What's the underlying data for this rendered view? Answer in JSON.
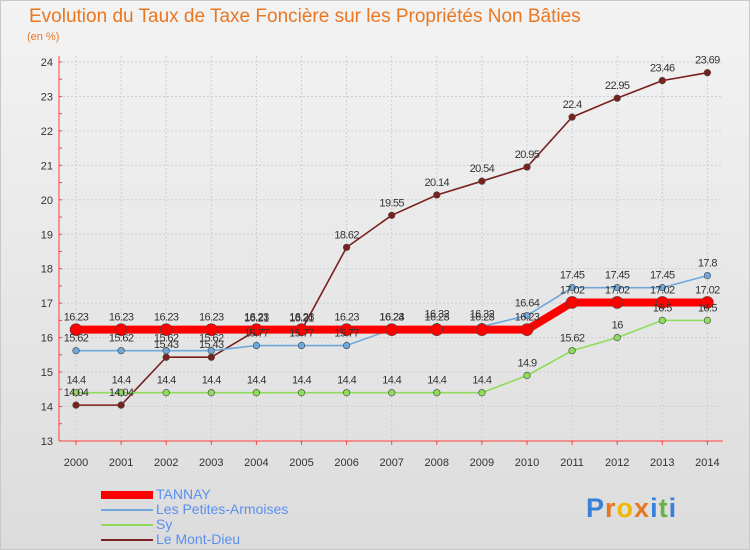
{
  "title": "Evolution du Taux de Taxe Foncière sur les Propriétés Non Bâties",
  "subtitle": "(en %)",
  "logo_text": "Proxiti",
  "logo_colors": [
    "#3a80d9",
    "#e87722",
    "#f2b705",
    "#e87722",
    "#3a80d9",
    "#6ab04c",
    "#3a80d9"
  ],
  "chart_data": {
    "type": "line",
    "title": "Evolution du Taux de Taxe Foncière sur les Propriétés Non Bâties",
    "ylabel": "(en %)",
    "xlabel": "",
    "ylim": [
      13,
      24
    ],
    "yticks": [
      "13",
      "14",
      "15",
      "16",
      "17",
      "18",
      "19",
      "20",
      "21",
      "22",
      "23",
      "24"
    ],
    "categories": [
      "2000",
      "2001",
      "2002",
      "2003",
      "2004",
      "2005",
      "2006",
      "2007",
      "2008",
      "2009",
      "2010",
      "2011",
      "2012",
      "2013",
      "2014"
    ],
    "legend_position": "bottom-left",
    "series": [
      {
        "name": "TANNAY",
        "color": "#ff0000",
        "values": [
          16.23,
          16.23,
          16.23,
          16.23,
          16.23,
          16.23,
          16.23,
          16.23,
          16.23,
          16.23,
          16.23,
          17.02,
          17.02,
          17.02,
          17.02
        ],
        "labels": [
          "16.23",
          "16.23",
          "16.23",
          "16.23",
          "16.23",
          "16.23",
          "16.23",
          "16.23",
          "16.23",
          "16.23",
          "16.23",
          "17.02",
          "17.02",
          "17.02",
          "17.02"
        ]
      },
      {
        "name": "Les Petites-Armoises",
        "color": "#6fa8dc",
        "values": [
          15.62,
          15.62,
          15.62,
          15.62,
          15.77,
          15.77,
          15.77,
          16.24,
          16.32,
          16.32,
          16.64,
          17.45,
          17.45,
          17.45,
          17.8
        ],
        "labels": [
          "15.62",
          "15.62",
          "15.62",
          "15.62",
          "15.77",
          "15.77",
          "15.77",
          "16.24",
          "16.32",
          "16.32",
          "16.64",
          "17.45",
          "17.45",
          "17.45",
          "17.8"
        ]
      },
      {
        "name": "Sy",
        "color": "#8fdc5a",
        "values": [
          14.4,
          14.4,
          14.4,
          14.4,
          14.4,
          14.4,
          14.4,
          14.4,
          14.4,
          14.4,
          14.9,
          15.62,
          16,
          16.5,
          16.5
        ],
        "labels": [
          "14.4",
          "14.4",
          "14.4",
          "14.4",
          "14.4",
          "14.4",
          "14.4",
          "14.4",
          "14.4",
          "14.4",
          "14.9",
          "15.62",
          "16",
          "16.5",
          "16.5"
        ]
      },
      {
        "name": "Le Mont-Dieu",
        "color": "#7b1f1f",
        "values": [
          14.04,
          14.04,
          15.43,
          15.43,
          16.21,
          16.21,
          18.62,
          19.55,
          20.14,
          20.54,
          20.95,
          22.4,
          22.95,
          23.46,
          23.69
        ],
        "labels": [
          "14.04",
          "14.04",
          "15.43",
          "15.43",
          "16.21",
          "16.21",
          "18.62",
          "19.55",
          "20.14",
          "20.54",
          "20.95",
          "22.4",
          "22.95",
          "23.46",
          "23.69"
        ]
      }
    ]
  }
}
